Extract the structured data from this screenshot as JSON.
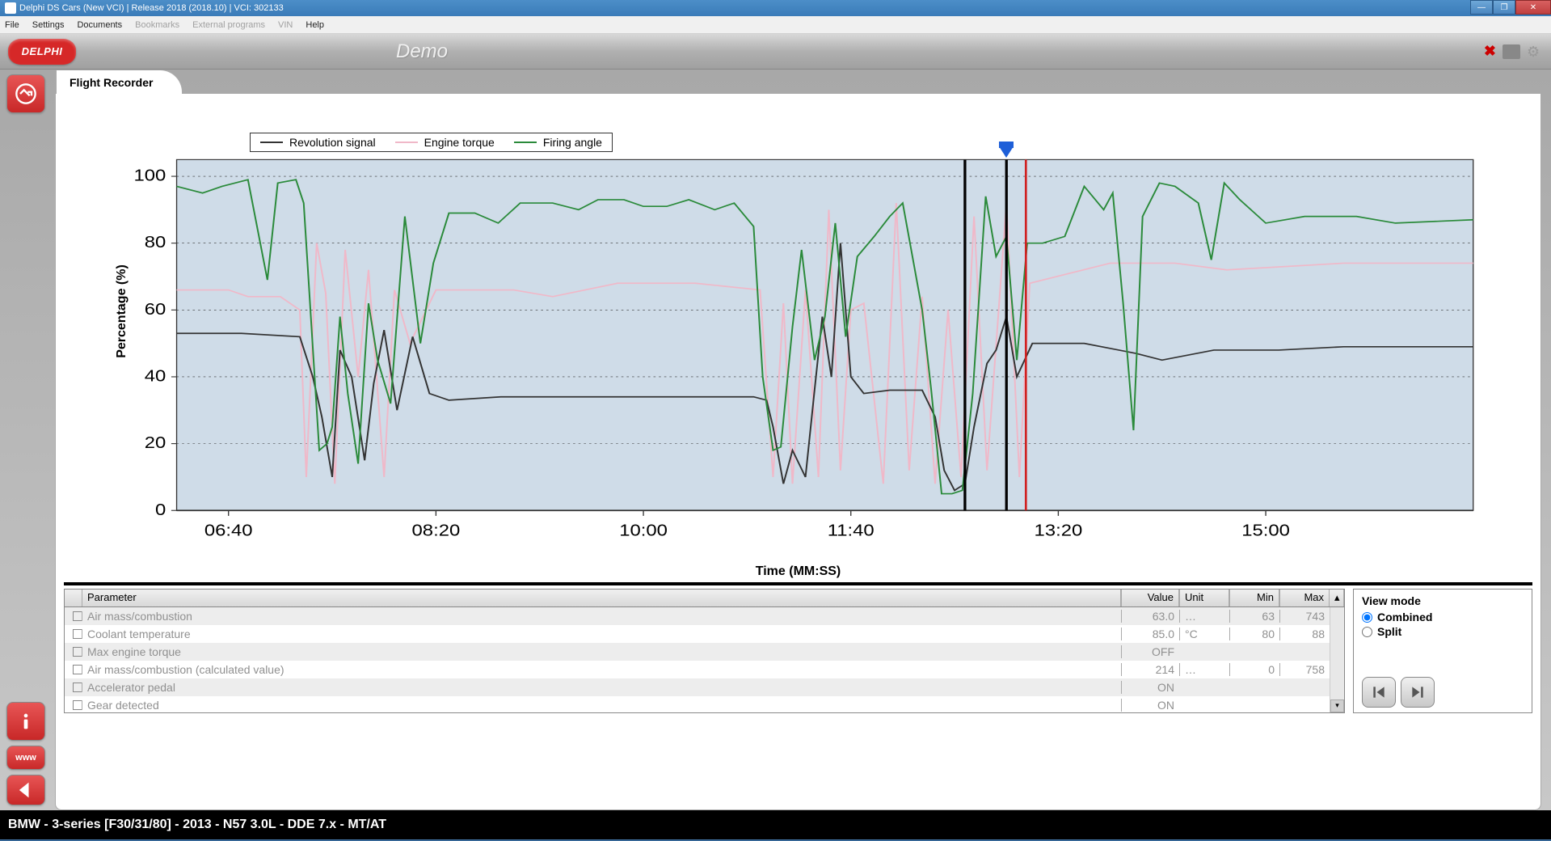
{
  "window": {
    "title": "Delphi DS Cars (New VCI) | Release 2018 (2018.10) | VCI: 302133"
  },
  "menu": {
    "items": [
      "File",
      "Settings",
      "Documents",
      "Bookmarks",
      "External programs",
      "VIN",
      "Help"
    ],
    "disabled": [
      "Bookmarks",
      "External programs",
      "VIN"
    ]
  },
  "header": {
    "logo": "DELPHI",
    "demo": "Demo"
  },
  "tab": {
    "label": "Flight Recorder"
  },
  "chart": {
    "type": "line",
    "y_label": "Percentage (%)",
    "x_label": "Time (MM:SS)",
    "ylim": [
      0,
      105
    ],
    "ytick_labels": [
      "0",
      "20",
      "40",
      "60",
      "80",
      "100"
    ],
    "ytick_values": [
      0,
      20,
      40,
      60,
      80,
      100
    ],
    "xtick_labels": [
      "06:40",
      "08:20",
      "10:00",
      "11:40",
      "13:20",
      "15:00"
    ],
    "xtick_positions": [
      40,
      200,
      360,
      520,
      680,
      840
    ],
    "x_range": [
      0,
      1000
    ],
    "background_color": "#cfdce8",
    "grid_color": "#333333",
    "cursor_x": 640,
    "red_line_x": 655,
    "black_line2_x": 608,
    "legend": [
      {
        "label": "Revolution signal",
        "color": "#333333"
      },
      {
        "label": "Engine torque",
        "color": "#f0b8c8"
      },
      {
        "label": "Firing angle",
        "color": "#2a8a3a"
      }
    ],
    "series": {
      "revolution": {
        "color": "#333333",
        "width": 1.5,
        "points": [
          [
            0,
            53
          ],
          [
            50,
            53
          ],
          [
            95,
            52
          ],
          [
            105,
            40
          ],
          [
            112,
            28
          ],
          [
            120,
            10
          ],
          [
            126,
            48
          ],
          [
            135,
            40
          ],
          [
            145,
            15
          ],
          [
            152,
            38
          ],
          [
            160,
            54
          ],
          [
            170,
            30
          ],
          [
            182,
            52
          ],
          [
            195,
            35
          ],
          [
            210,
            33
          ],
          [
            250,
            34
          ],
          [
            400,
            34
          ],
          [
            445,
            34
          ],
          [
            455,
            33
          ],
          [
            460,
            25
          ],
          [
            468,
            8
          ],
          [
            475,
            18
          ],
          [
            485,
            10
          ],
          [
            492,
            36
          ],
          [
            498,
            58
          ],
          [
            505,
            40
          ],
          [
            512,
            80
          ],
          [
            520,
            40
          ],
          [
            530,
            35
          ],
          [
            550,
            36
          ],
          [
            575,
            36
          ],
          [
            585,
            28
          ],
          [
            592,
            12
          ],
          [
            600,
            6
          ],
          [
            608,
            8
          ],
          [
            615,
            25
          ],
          [
            625,
            44
          ],
          [
            632,
            48
          ],
          [
            640,
            58
          ],
          [
            648,
            40
          ],
          [
            660,
            50
          ],
          [
            700,
            50
          ],
          [
            740,
            47
          ],
          [
            760,
            45
          ],
          [
            800,
            48
          ],
          [
            850,
            48
          ],
          [
            900,
            49
          ],
          [
            1000,
            49
          ]
        ]
      },
      "torque": {
        "color": "#f0b8c8",
        "width": 1.5,
        "points": [
          [
            0,
            66
          ],
          [
            40,
            66
          ],
          [
            55,
            64
          ],
          [
            80,
            64
          ],
          [
            95,
            60
          ],
          [
            100,
            10
          ],
          [
            108,
            80
          ],
          [
            115,
            65
          ],
          [
            122,
            8
          ],
          [
            130,
            78
          ],
          [
            140,
            40
          ],
          [
            148,
            72
          ],
          [
            160,
            10
          ],
          [
            168,
            66
          ],
          [
            180,
            50
          ],
          [
            200,
            66
          ],
          [
            260,
            66
          ],
          [
            290,
            64
          ],
          [
            340,
            68
          ],
          [
            400,
            68
          ],
          [
            450,
            66
          ],
          [
            460,
            10
          ],
          [
            468,
            62
          ],
          [
            475,
            8
          ],
          [
            485,
            66
          ],
          [
            495,
            10
          ],
          [
            503,
            90
          ],
          [
            512,
            12
          ],
          [
            520,
            60
          ],
          [
            530,
            62
          ],
          [
            545,
            8
          ],
          [
            555,
            92
          ],
          [
            565,
            12
          ],
          [
            575,
            64
          ],
          [
            585,
            8
          ],
          [
            595,
            60
          ],
          [
            605,
            10
          ],
          [
            615,
            88
          ],
          [
            625,
            12
          ],
          [
            640,
            92
          ],
          [
            650,
            10
          ],
          [
            658,
            68
          ],
          [
            720,
            74
          ],
          [
            770,
            74
          ],
          [
            810,
            72
          ],
          [
            900,
            74
          ],
          [
            1000,
            74
          ]
        ]
      },
      "firing": {
        "color": "#2a8a3a",
        "width": 1.5,
        "points": [
          [
            0,
            97
          ],
          [
            20,
            95
          ],
          [
            35,
            97
          ],
          [
            55,
            99
          ],
          [
            70,
            69
          ],
          [
            78,
            98
          ],
          [
            92,
            99
          ],
          [
            98,
            92
          ],
          [
            104,
            55
          ],
          [
            110,
            18
          ],
          [
            116,
            20
          ],
          [
            120,
            25
          ],
          [
            126,
            58
          ],
          [
            132,
            35
          ],
          [
            140,
            14
          ],
          [
            148,
            62
          ],
          [
            155,
            45
          ],
          [
            165,
            32
          ],
          [
            176,
            88
          ],
          [
            188,
            50
          ],
          [
            198,
            74
          ],
          [
            210,
            89
          ],
          [
            230,
            89
          ],
          [
            248,
            86
          ],
          [
            265,
            92
          ],
          [
            290,
            92
          ],
          [
            310,
            90
          ],
          [
            325,
            93
          ],
          [
            345,
            93
          ],
          [
            360,
            91
          ],
          [
            378,
            91
          ],
          [
            395,
            93
          ],
          [
            415,
            90
          ],
          [
            430,
            92
          ],
          [
            445,
            85
          ],
          [
            452,
            40
          ],
          [
            460,
            18
          ],
          [
            466,
            19
          ],
          [
            475,
            55
          ],
          [
            482,
            78
          ],
          [
            492,
            45
          ],
          [
            500,
            58
          ],
          [
            508,
            86
          ],
          [
            516,
            52
          ],
          [
            525,
            76
          ],
          [
            538,
            82
          ],
          [
            550,
            88
          ],
          [
            560,
            92
          ],
          [
            575,
            60
          ],
          [
            582,
            36
          ],
          [
            590,
            5
          ],
          [
            598,
            5
          ],
          [
            606,
            6
          ],
          [
            614,
            35
          ],
          [
            624,
            94
          ],
          [
            632,
            76
          ],
          [
            640,
            82
          ],
          [
            648,
            45
          ],
          [
            656,
            80
          ],
          [
            668,
            80
          ],
          [
            685,
            82
          ],
          [
            700,
            97
          ],
          [
            715,
            90
          ],
          [
            722,
            95
          ],
          [
            730,
            62
          ],
          [
            738,
            24
          ],
          [
            745,
            88
          ],
          [
            758,
            98
          ],
          [
            770,
            97
          ],
          [
            788,
            92
          ],
          [
            798,
            75
          ],
          [
            808,
            98
          ],
          [
            820,
            93
          ],
          [
            840,
            86
          ],
          [
            870,
            88
          ],
          [
            910,
            88
          ],
          [
            940,
            86
          ],
          [
            1000,
            87
          ]
        ]
      }
    }
  },
  "table": {
    "headers": {
      "param": "Parameter",
      "value": "Value",
      "unit": "Unit",
      "min": "Min",
      "max": "Max"
    },
    "rows": [
      {
        "param": "Air mass/combustion",
        "value": "63.0",
        "unit": "…",
        "min": "63",
        "max": "743"
      },
      {
        "param": "Coolant temperature",
        "value": "85.0",
        "unit": "°C",
        "min": "80",
        "max": "88"
      },
      {
        "param": "Max engine torque",
        "value": "OFF",
        "unit": "",
        "min": "",
        "max": ""
      },
      {
        "param": "Air mass/combustion (calculated value)",
        "value": "214",
        "unit": "…",
        "min": "0",
        "max": "758"
      },
      {
        "param": "Accelerator pedal",
        "value": "ON",
        "unit": "",
        "min": "",
        "max": ""
      },
      {
        "param": "Gear detected",
        "value": "ON",
        "unit": "",
        "min": "",
        "max": ""
      }
    ]
  },
  "viewmode": {
    "title": "View mode",
    "combined": "Combined",
    "split": "Split",
    "selected": "combined"
  },
  "status": {
    "text": "BMW - 3-series [F30/31/80] - 2013 - N57 3.0L - DDE 7.x - MT/AT"
  }
}
